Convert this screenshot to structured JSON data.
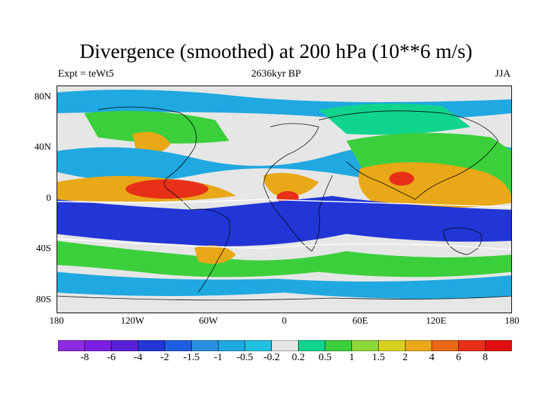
{
  "title": "Divergence (smoothed) at 200 hPa (10**6 m/s)",
  "left_subtitle": "Expt = teWt5",
  "center_subtitle": "2636kyr BP",
  "right_subtitle": "JJA",
  "lat_labels": [
    "80N",
    "40N",
    "0",
    "40S",
    "80S"
  ],
  "lon_labels": [
    "180",
    "120W",
    "60W",
    "0",
    "60E",
    "120E",
    "180"
  ],
  "colorbar": {
    "labels": [
      "-8",
      "-6",
      "-4",
      "-2",
      "-1.5",
      "-1",
      "-0.5",
      "-0.2",
      "0.2",
      "0.5",
      "1",
      "1.5",
      "2",
      "4",
      "6",
      "8"
    ],
    "colors": [
      "#8c2be0",
      "#7a1fe0",
      "#5a20d8",
      "#2236d6",
      "#1f5ee0",
      "#2a8ee0",
      "#20a8e0",
      "#22c0e0",
      "#e6e6e6",
      "#10d48e",
      "#3ccf3c",
      "#8fd83a",
      "#d8d020",
      "#e8a818",
      "#e86818",
      "#e83018",
      "#e01010"
    ]
  },
  "colors": {
    "background_neutral": "#e6e6e6",
    "coast": "#000000"
  }
}
